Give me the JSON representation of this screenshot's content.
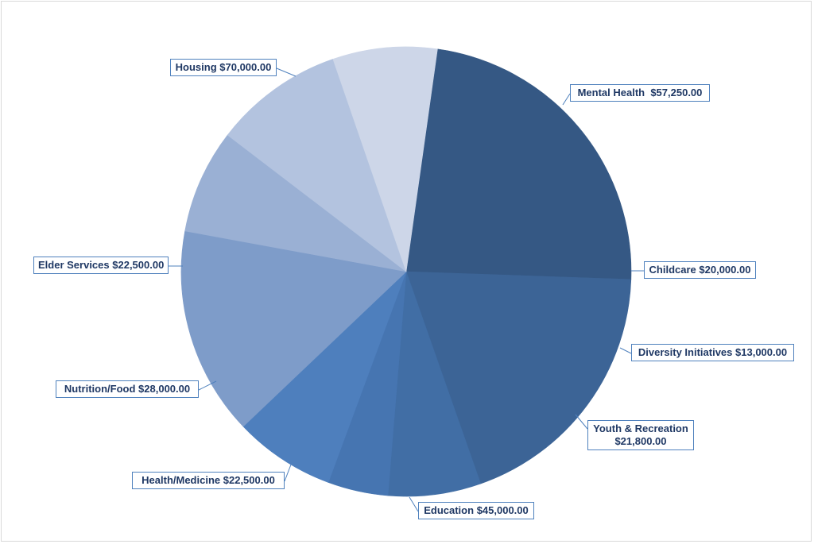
{
  "chart_data": {
    "type": "pie",
    "slices": [
      {
        "category": "Housing",
        "value_label": "$70,000.00",
        "value": 70000,
        "color": "#355884"
      },
      {
        "category": "Mental Health ",
        "value_label": "$57,250.00",
        "value": 57250,
        "color": "#3c6496"
      },
      {
        "category": "Childcare",
        "value_label": "$20,000.00",
        "value": 20000,
        "color": "#416ea5"
      },
      {
        "category": "Diversity Initiatives",
        "value_label": "$13,000.00",
        "value": 13000,
        "color": "#4675b1"
      },
      {
        "category": "Youth & Recreation",
        "value_label": "$21,800.00",
        "value": 21800,
        "color": "#4e7fbd"
      },
      {
        "category": "Education",
        "value_label": "$45,000.00",
        "value": 45000,
        "color": "#7e9cc9"
      },
      {
        "category": "Health/Medicine",
        "value_label": "$22,500.00",
        "value": 22500,
        "color": "#9ab0d4"
      },
      {
        "category": "Nutrition/Food",
        "value_label": "$28,000.00",
        "value": 28000,
        "color": "#b3c3df"
      },
      {
        "category": "Elder Services",
        "value_label": "$22,500.00",
        "value": 22500,
        "color": "#cdd6e8"
      }
    ],
    "legend": "none",
    "data_labels": "category and value, boxed callouts with leader lines"
  }
}
